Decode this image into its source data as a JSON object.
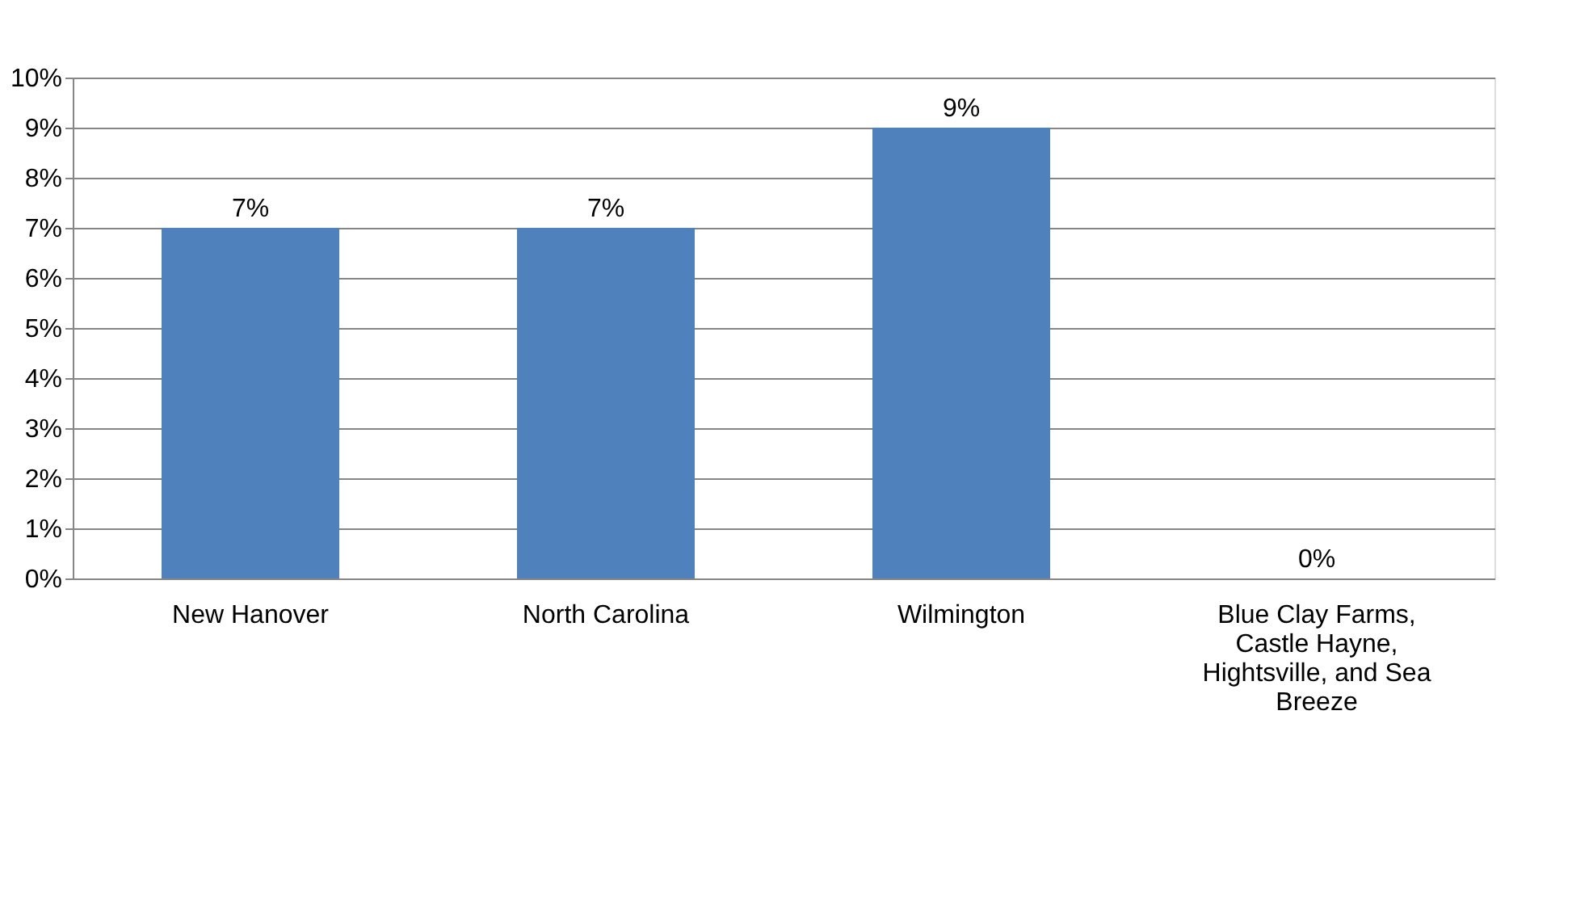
{
  "chart_data": {
    "type": "bar",
    "categories": [
      "New Hanover",
      "North Carolina",
      "Wilmington",
      "Blue Clay Farms, Castle Hayne, Hightsville, and Sea Breeze"
    ],
    "values": [
      7,
      7,
      9,
      0
    ],
    "value_labels": [
      "7%",
      "7%",
      "9%",
      "0%"
    ],
    "color": "#4f81bd",
    "ylim": [
      0,
      10
    ],
    "yticks": [
      {
        "value": 0,
        "label": "0%"
      },
      {
        "value": 1,
        "label": "1%"
      },
      {
        "value": 2,
        "label": "2%"
      },
      {
        "value": 3,
        "label": "3%"
      },
      {
        "value": 4,
        "label": "4%"
      },
      {
        "value": 5,
        "label": "5%"
      },
      {
        "value": 6,
        "label": "6%"
      },
      {
        "value": 7,
        "label": "7%"
      },
      {
        "value": 8,
        "label": "8%"
      },
      {
        "value": 9,
        "label": "9%"
      },
      {
        "value": 10,
        "label": "10%"
      }
    ],
    "grid": "y"
  }
}
